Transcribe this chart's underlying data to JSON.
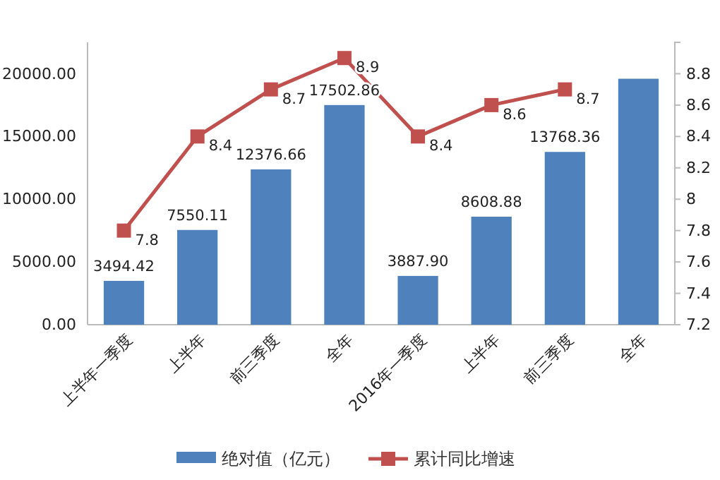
{
  "chart_data": {
    "type": "bar",
    "categories": [
      "上半年一季度",
      "上半年",
      "前三季度",
      "全年",
      "2016年一季度",
      "上半年",
      "前三季度",
      "全年"
    ],
    "series": [
      {
        "name": "绝对值（亿元）",
        "color": "#4f81bd",
        "values": [
          3494.42,
          7550.11,
          12376.66,
          17502.86,
          3887.9,
          8608.88,
          13768.36,
          19600
        ],
        "value_labels": [
          "3494.42",
          "7550.11",
          "12376.66",
          "17502.86",
          "3887.90",
          "8608.88",
          "13768.36",
          null
        ]
      },
      {
        "name": "累计同比增速",
        "type": "line",
        "axis": "y2",
        "color": "#c0504d",
        "marker": "square",
        "values": [
          7.8,
          8.4,
          8.7,
          8.9,
          8.4,
          8.6,
          8.7,
          null
        ],
        "value_labels": [
          "7.8",
          "8.4",
          "8.7",
          "8.9",
          "8.4",
          "8.6",
          "8.7",
          null
        ]
      }
    ],
    "ylim": [
      0,
      22500
    ],
    "yticks": [
      {
        "value": 0,
        "label": "0.00"
      },
      {
        "value": 5000,
        "label": "5000.00"
      },
      {
        "value": 10000,
        "label": "10000.00"
      },
      {
        "value": 15000,
        "label": "15000.00"
      },
      {
        "value": 20000,
        "label": "20000.00"
      }
    ],
    "y2lim": [
      7.2,
      9.0
    ],
    "y2ticks": [
      7.2,
      7.4,
      7.6,
      7.8,
      8,
      8.2,
      8.4,
      8.6,
      8.8
    ],
    "legend": "bottom",
    "grid": false
  }
}
